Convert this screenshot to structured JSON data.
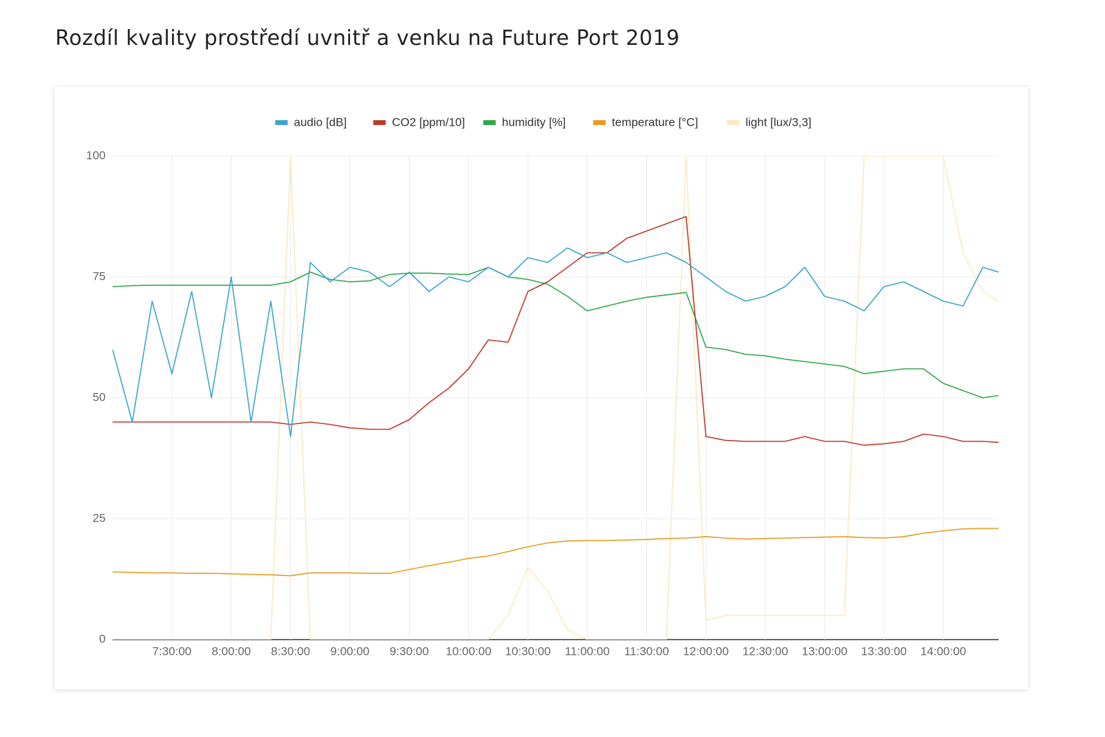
{
  "chart_data": {
    "type": "line",
    "title": "Rozdíl kvality prostředí uvnitř a venku na Future Port 2019",
    "x": [
      "7:00:00",
      "7:10:00",
      "7:20:00",
      "7:30:00",
      "7:40:00",
      "7:50:00",
      "8:00:00",
      "8:10:00",
      "8:20:00",
      "8:30:00",
      "8:40:00",
      "8:50:00",
      "9:00:00",
      "9:10:00",
      "9:20:00",
      "9:30:00",
      "9:40:00",
      "9:50:00",
      "10:00:00",
      "10:10:00",
      "10:20:00",
      "10:30:00",
      "10:40:00",
      "10:50:00",
      "11:00:00",
      "11:10:00",
      "11:20:00",
      "11:30:00",
      "11:40:00",
      "11:50:00",
      "12:00:00",
      "12:10:00",
      "12:20:00",
      "12:30:00",
      "12:40:00",
      "12:50:00",
      "13:00:00",
      "13:10:00",
      "13:20:00",
      "13:30:00",
      "13:40:00",
      "13:50:00",
      "14:00:00",
      "14:10:00",
      "14:20:00",
      "14:28:00"
    ],
    "series": [
      {
        "name": "audio [dB]",
        "color": "#3aa6cc",
        "values": [
          60,
          45,
          70,
          55,
          72,
          50,
          75,
          45,
          70,
          42,
          78,
          74,
          77,
          76,
          73,
          76,
          72,
          75,
          74,
          77,
          75,
          79,
          78,
          81,
          79,
          80,
          78,
          79,
          80,
          78,
          75,
          72,
          70,
          71,
          73,
          77,
          71,
          70,
          68,
          73,
          74,
          72,
          70,
          69,
          77,
          76
        ]
      },
      {
        "name": "CO2 [ppm/10]",
        "color": "#c0392b",
        "values": [
          45,
          45,
          45,
          45,
          45,
          45,
          45,
          45,
          45,
          44.5,
          45,
          44.5,
          43.8,
          43.5,
          43.5,
          45.5,
          49,
          52,
          56,
          62,
          61.5,
          72,
          74,
          77,
          80,
          80,
          83,
          84.5,
          86,
          87.5,
          42,
          41.2,
          41,
          41,
          41,
          42,
          41,
          41,
          40.2,
          40.5,
          41,
          42.5,
          42,
          41,
          41,
          40.8
        ]
      },
      {
        "name": "humidity [%]",
        "color": "#2ea84a",
        "values": [
          73,
          73.2,
          73.3,
          73.3,
          73.3,
          73.3,
          73.3,
          73.3,
          73.3,
          74,
          76,
          74.5,
          74,
          74.2,
          75.5,
          75.8,
          75.8,
          75.6,
          75.5,
          77,
          75,
          74.5,
          73.5,
          71,
          68,
          69,
          70,
          70.8,
          71.3,
          71.8,
          60.5,
          60,
          59,
          58.7,
          58,
          57.5,
          57,
          56.5,
          55,
          55.5,
          56,
          56,
          53,
          51.5,
          50,
          50.5
        ]
      },
      {
        "name": "temperature [°C]",
        "color": "#e69c1f",
        "values": [
          14,
          13.9,
          13.8,
          13.8,
          13.7,
          13.7,
          13.6,
          13.5,
          13.4,
          13.2,
          13.8,
          13.8,
          13.8,
          13.7,
          13.7,
          14.5,
          15.3,
          16,
          16.8,
          17.3,
          18.2,
          19.2,
          20,
          20.4,
          20.5,
          20.5,
          20.6,
          20.7,
          20.9,
          21,
          21.3,
          21,
          20.8,
          20.9,
          21,
          21.1,
          21.2,
          21.3,
          21.1,
          21,
          21.3,
          22,
          22.5,
          22.9,
          23,
          23
        ]
      },
      {
        "name": "light [lux/3,3]",
        "color": "#fde9be",
        "values": [
          0,
          0,
          0,
          0,
          0,
          0,
          0,
          0,
          0,
          100,
          0,
          0,
          0,
          0,
          0,
          0,
          0,
          0,
          0,
          0,
          5,
          15,
          10,
          2,
          0,
          0,
          0,
          0,
          0,
          100,
          4,
          5,
          5,
          5,
          5,
          5,
          5,
          5,
          100,
          100,
          100,
          100,
          100,
          80,
          72,
          70
        ]
      }
    ],
    "xlim": [
      "7:00:00",
      "14:28:00"
    ],
    "xticks": [
      "7:30:00",
      "8:00:00",
      "8:30:00",
      "9:00:00",
      "9:30:00",
      "10:00:00",
      "10:30:00",
      "11:00:00",
      "11:30:00",
      "12:00:00",
      "12:30:00",
      "13:00:00",
      "13:30:00",
      "14:00:00"
    ],
    "ylim": [
      0,
      100
    ],
    "yticks": [
      0,
      25,
      50,
      75,
      100
    ],
    "grid": true,
    "legend": "top"
  }
}
